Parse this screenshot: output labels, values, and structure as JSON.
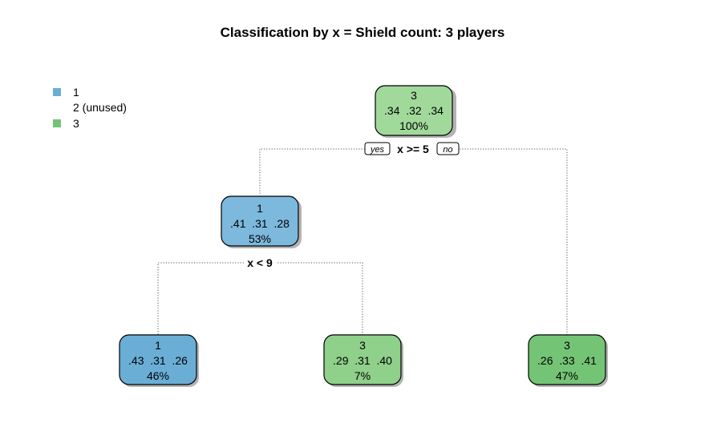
{
  "title": "Classification by x = Shield count: 3 players",
  "legend": [
    {
      "label": "1",
      "color": "#6aaed6"
    },
    {
      "label": "2 (unused)",
      "color": ""
    },
    {
      "label": "3",
      "color": "#74c476"
    }
  ],
  "tree": {
    "nodes": {
      "root": {
        "class": "3",
        "probs": ".34  .32  .34",
        "percent": "100%",
        "color": "#a1d99b"
      },
      "left": {
        "class": "1",
        "probs": ".41  .31  .28",
        "percent": "53%",
        "color": "#7db8dd"
      },
      "ll": {
        "class": "1",
        "probs": ".43  .31  .26",
        "percent": "46%",
        "color": "#6aaed6"
      },
      "lr": {
        "class": "3",
        "probs": ".29  .31  .40",
        "percent": "7%",
        "color": "#8fd08a"
      },
      "right": {
        "class": "3",
        "probs": ".26  .33  .41",
        "percent": "47%",
        "color": "#74c476"
      }
    },
    "splits": {
      "root": {
        "condition": "x >= 5",
        "yes_label": "yes",
        "no_label": "no"
      },
      "left": {
        "condition": "x < 9"
      }
    }
  }
}
